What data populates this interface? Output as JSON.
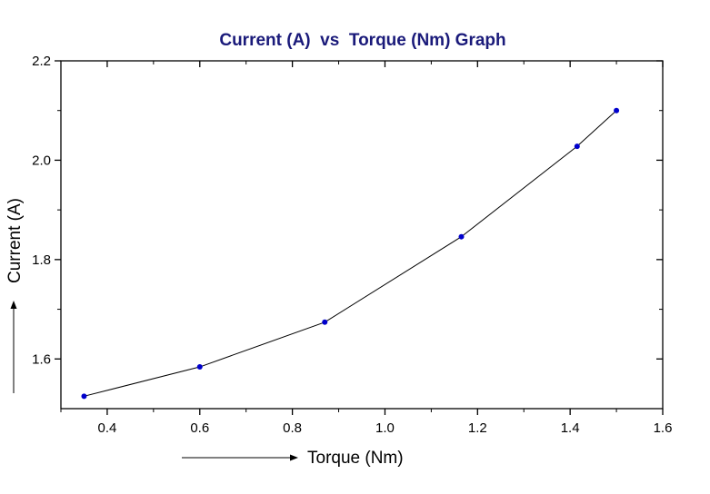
{
  "chart_data": {
    "type": "line",
    "title": "Current (A)  vs  Torque (Nm) Graph",
    "xlabel": "Torque (Nm)",
    "ylabel": "Current (A)",
    "xlim": [
      0.3,
      1.6
    ],
    "ylim": [
      1.5,
      2.2
    ],
    "xticks": [
      0.4,
      0.6,
      0.8,
      1.0,
      1.2,
      1.4,
      1.6
    ],
    "xtick_labels": [
      "0.4",
      "0.6",
      "0.8",
      "1.0",
      "1.2",
      "1.4",
      "1.6"
    ],
    "yticks": [
      1.6,
      1.8,
      2.0,
      2.2
    ],
    "ytick_labels": [
      "1.6",
      "1.8",
      "2.0",
      "2.2"
    ],
    "grid": false,
    "series": [
      {
        "x": [
          0.35,
          0.6,
          0.87,
          1.165,
          1.415,
          1.5
        ],
        "y": [
          1.525,
          1.584,
          1.674,
          1.846,
          2.028,
          2.1
        ],
        "line_color": "#000000",
        "marker_color": "#0000cc"
      }
    ],
    "title_color": "#1a1a7a"
  }
}
